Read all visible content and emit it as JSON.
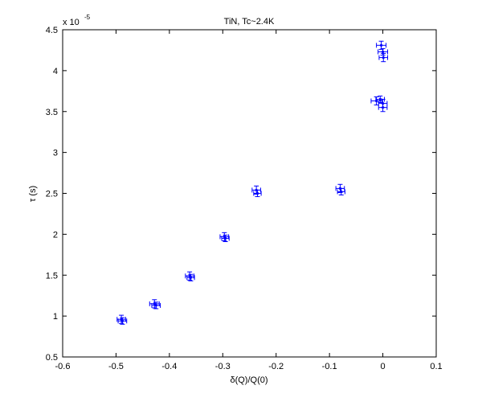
{
  "chart_data": {
    "type": "scatter",
    "title": "TiN, Tc~2.4K",
    "xlabel": "δ(Q)/Q(0)",
    "ylabel": "τ (s)",
    "y_exponent_prefix": "x 10",
    "y_exponent_power": "-5",
    "xlim": [
      -0.6,
      0.1
    ],
    "ylim": [
      0.5,
      4.5
    ],
    "x_ticks": [
      -0.6,
      -0.5,
      -0.4,
      -0.3,
      -0.2,
      -0.1,
      0,
      0.1
    ],
    "x_tick_labels": [
      "-0.6",
      "-0.5",
      "-0.4",
      "-0.3",
      "-0.2",
      "-0.1",
      "0",
      "0.1"
    ],
    "y_ticks": [
      0.5,
      1,
      1.5,
      2,
      2.5,
      3,
      3.5,
      4,
      4.5
    ],
    "y_tick_labels": [
      "0.5",
      "1",
      "1.5",
      "2",
      "2.5",
      "3",
      "3.5",
      "4",
      "4.5"
    ],
    "grid": false,
    "marker_color": "#0000ff",
    "points": [
      {
        "x": -0.49,
        "y": 0.96,
        "xerr": 0.008,
        "yerr": 0.05
      },
      {
        "x": -0.488,
        "y": 0.94,
        "xerr": 0.008,
        "yerr": 0.04
      },
      {
        "x": -0.428,
        "y": 1.15,
        "xerr": 0.009,
        "yerr": 0.05
      },
      {
        "x": -0.425,
        "y": 1.13,
        "xerr": 0.008,
        "yerr": 0.04
      },
      {
        "x": -0.362,
        "y": 1.49,
        "xerr": 0.008,
        "yerr": 0.05
      },
      {
        "x": -0.36,
        "y": 1.47,
        "xerr": 0.007,
        "yerr": 0.04
      },
      {
        "x": -0.297,
        "y": 1.97,
        "xerr": 0.008,
        "yerr": 0.05
      },
      {
        "x": -0.295,
        "y": 1.95,
        "xerr": 0.007,
        "yerr": 0.04
      },
      {
        "x": -0.237,
        "y": 2.54,
        "xerr": 0.008,
        "yerr": 0.05
      },
      {
        "x": -0.235,
        "y": 2.5,
        "xerr": 0.007,
        "yerr": 0.04
      },
      {
        "x": -0.08,
        "y": 2.56,
        "xerr": 0.008,
        "yerr": 0.05
      },
      {
        "x": -0.078,
        "y": 2.52,
        "xerr": 0.007,
        "yerr": 0.04
      },
      {
        "x": -0.012,
        "y": 3.63,
        "xerr": 0.01,
        "yerr": 0.05
      },
      {
        "x": -0.005,
        "y": 3.65,
        "xerr": 0.008,
        "yerr": 0.04
      },
      {
        "x": 0.0,
        "y": 3.6,
        "xerr": 0.008,
        "yerr": 0.05
      },
      {
        "x": 0.0,
        "y": 3.55,
        "xerr": 0.008,
        "yerr": 0.05
      },
      {
        "x": -0.003,
        "y": 4.31,
        "xerr": 0.009,
        "yerr": 0.05
      },
      {
        "x": 0.0,
        "y": 4.23,
        "xerr": 0.009,
        "yerr": 0.04
      },
      {
        "x": 0.001,
        "y": 4.16,
        "xerr": 0.008,
        "yerr": 0.05
      }
    ]
  }
}
